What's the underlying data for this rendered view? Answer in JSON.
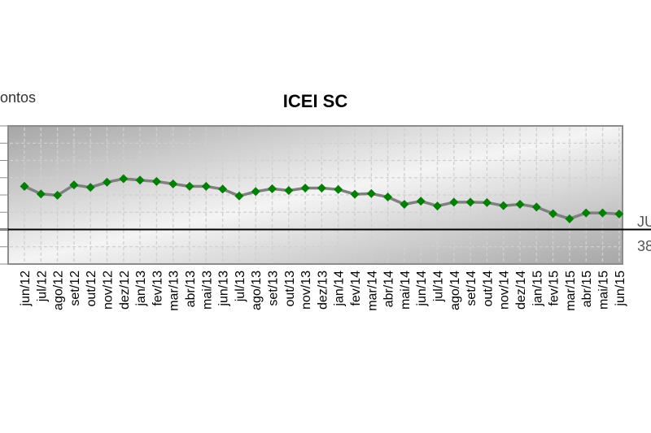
{
  "page": {
    "unit_label": "ontos",
    "side_label_1": "JU",
    "side_label_2": "38"
  },
  "chart_data": {
    "type": "line",
    "title": "ICEI SC",
    "xlabel": "",
    "ylabel": "",
    "ylim": [
      40,
      80
    ],
    "reference_line": 50,
    "grid": true,
    "categories": [
      "jun/12",
      "jul/12",
      "ago/12",
      "set/12",
      "out/12",
      "nov/12",
      "dez/12",
      "jan/13",
      "fev/13",
      "mar/13",
      "abr/13",
      "mai/13",
      "jun/13",
      "jul/13",
      "ago/13",
      "set/13",
      "out/13",
      "nov/13",
      "dez/13",
      "jan/14",
      "fev/14",
      "mar/14",
      "abr/14",
      "mai/14",
      "jun/14",
      "jul/14",
      "ago/14",
      "set/14",
      "out/14",
      "nov/14",
      "dez/14",
      "jan/15",
      "fev/15",
      "mar/15",
      "abr/15",
      "mai/15",
      "jun/15"
    ],
    "series": [
      {
        "values": [
          62.5,
          60.3,
          59.9,
          62.9,
          62.2,
          63.7,
          64.7,
          64.3,
          63.9,
          63.2,
          62.5,
          62.5,
          61.7,
          59.7,
          61.0,
          61.8,
          61.3,
          62.0,
          62.0,
          61.6,
          60.2,
          60.4,
          59.4,
          57.3,
          58.2,
          56.8,
          57.9,
          57.9,
          57.8,
          56.9,
          57.3,
          56.5,
          54.6,
          53.1,
          54.8,
          54.8,
          54.5
        ],
        "color": "#808080",
        "marker_color": "#008000"
      }
    ],
    "colors": {
      "plot_dark": "#a6a6a6",
      "plot_light": "#f4f4f4",
      "grid": "#cfcfcf",
      "axis": "#8c8c8c",
      "reference_line": "#000000"
    }
  }
}
